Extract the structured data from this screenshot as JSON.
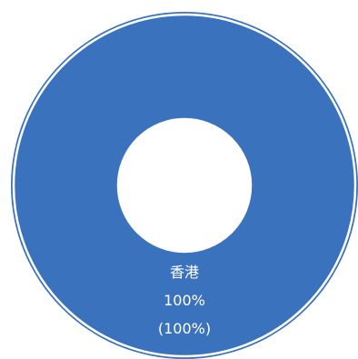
{
  "chart_data": {
    "type": "pie",
    "variant": "doughnut",
    "title": "",
    "categories": [
      "香港"
    ],
    "values": [
      100
    ],
    "value_labels": [
      "100%"
    ],
    "percent_labels": [
      "(100%)"
    ],
    "colors": [
      "#3a72bd"
    ],
    "ring_border_color": "#ffffff",
    "legend": "none",
    "grid": false
  }
}
